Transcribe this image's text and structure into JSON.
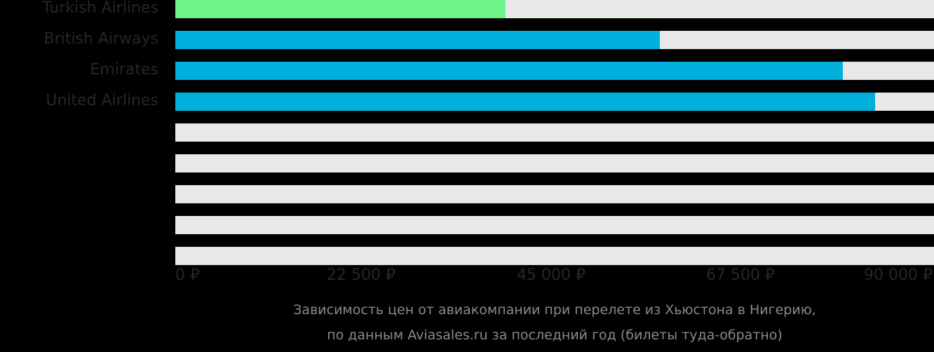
{
  "chart_data": {
    "type": "bar",
    "orientation": "horizontal",
    "title": "Зависимость цен от авиакомпании при перелете из Хьюстона в Нигерию, по данным Aviasales.ru за последний год (билеты туда-обратно)",
    "categories": [
      "Turkish Airlines",
      "British Airways",
      "Emirates",
      "United Airlines",
      "",
      "",
      "",
      "",
      ""
    ],
    "values": [
      39200,
      57500,
      79200,
      83000,
      null,
      null,
      null,
      null,
      null
    ],
    "colors": [
      "#6ff48a",
      "#00b0dd",
      "#00b0dd",
      "#00b0dd"
    ],
    "xlabel": "",
    "ylabel": "",
    "xlim": [
      0,
      90000
    ],
    "xticks": [
      "0 ₽",
      "22 500 ₽",
      "45 000 ₽",
      "67 500 ₽",
      "90 000 ₽"
    ],
    "grid": false,
    "legend": null
  },
  "rows": [
    {
      "label": "Turkish Airlines",
      "value": 39200,
      "color": "#6ff48a"
    },
    {
      "label": "British Airways",
      "value": 57500,
      "color": "#00b0dd"
    },
    {
      "label": "Emirates",
      "value": 79200,
      "color": "#00b0dd"
    },
    {
      "label": "United Airlines",
      "value": 83000,
      "color": "#00b0dd"
    },
    {
      "label": "",
      "value": 0,
      "color": "#00b0dd"
    },
    {
      "label": "",
      "value": 0,
      "color": "#00b0dd"
    },
    {
      "label": "",
      "value": 0,
      "color": "#00b0dd"
    },
    {
      "label": "",
      "value": 0,
      "color": "#00b0dd"
    },
    {
      "label": "",
      "value": 0,
      "color": "#00b0dd"
    }
  ],
  "axis": {
    "max": 90000,
    "ticks": [
      {
        "label": "0 ₽",
        "value": 0
      },
      {
        "label": "22 500 ₽",
        "value": 22500
      },
      {
        "label": "45 000 ₽",
        "value": 45000
      },
      {
        "label": "67 500 ₽",
        "value": 67500
      },
      {
        "label": "90 000 ₽",
        "value": 90000
      }
    ]
  },
  "caption": {
    "line1": "Зависимость цен от авиакомпании при перелете из Хьюстона в Нигерию,",
    "line2": "по данным Aviasales.ru за последний год (билеты туда-обратно)"
  },
  "colors": {
    "background": "#000000",
    "track": "#e8e8e8",
    "highlight": "#6ff48a",
    "bar": "#00b0dd",
    "label": "#262626",
    "caption": "#8a8a8a"
  }
}
